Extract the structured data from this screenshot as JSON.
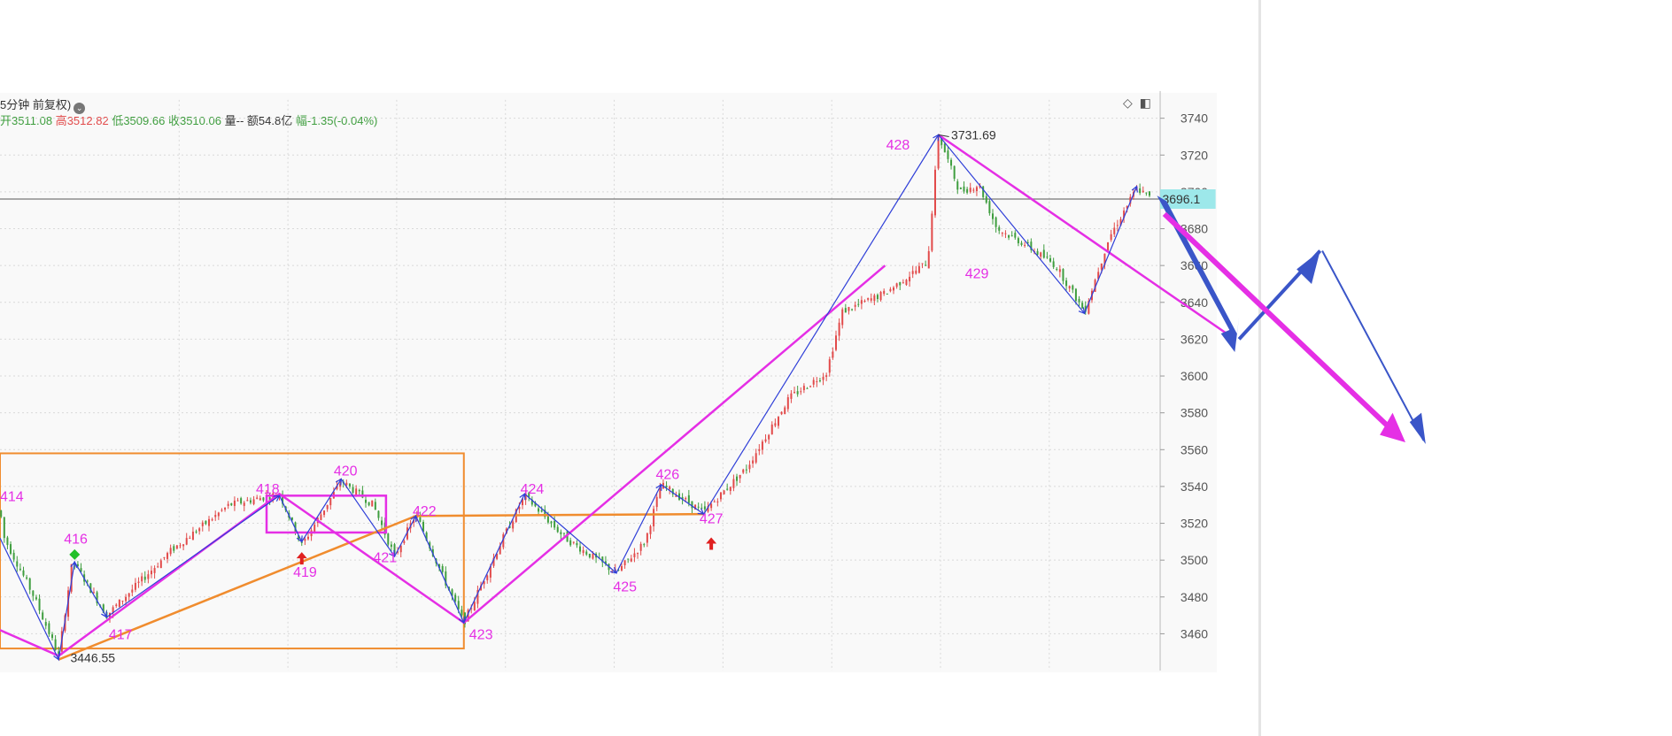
{
  "header": {
    "title": "5分钟 前复权)",
    "open_label": "开",
    "open": "3511.08",
    "high_label": "高",
    "high": "3512.82",
    "low_label": "低",
    "low": "3509.66",
    "close_label": "收",
    "close": "3510.06",
    "vol_label": "量",
    "vol": "--",
    "amount_label": "额",
    "amount": "54.8亿",
    "change_label": "幅",
    "change": "-1.35(-0.04%)"
  },
  "toolbar": {
    "diamond_icon": "◇",
    "panel_icon": "◧"
  },
  "colors": {
    "up": "#e24a4a",
    "down": "#3f9e3f",
    "pink": "#e52fe5",
    "orange": "#f08c2e",
    "blue": "#2f3fd8",
    "arrow_blue": "#3a55c8",
    "price_box": "#9de8ea"
  },
  "chart_data": {
    "type": "candlestick",
    "title": "",
    "ylim": [
      3440,
      3750
    ],
    "y_ticks": [
      3460,
      3480,
      3500,
      3520,
      3540,
      3560,
      3580,
      3600,
      3620,
      3640,
      3660,
      3680,
      3700,
      3720,
      3740
    ],
    "y_tick_labels": [
      "3460",
      "3480",
      "3500",
      "3520",
      "3540",
      "3560",
      "3580",
      "3600",
      "3620",
      "3640",
      "3660",
      "3680",
      "3700",
      "3720",
      "3740"
    ],
    "current_price": "3696.1",
    "max_label": "3731.69",
    "min_label": "3446.55",
    "wave_labels": [
      "414",
      "416",
      "417",
      "418",
      "419",
      "420",
      "421",
      "422",
      "423",
      "424",
      "425",
      "426",
      "427",
      "428",
      "429"
    ],
    "price_path": [
      {
        "t": 0,
        "y": 3527
      },
      {
        "t": 4,
        "y": 3512
      },
      {
        "t": 32,
        "y": 3480
      },
      {
        "t": 55,
        "y": 3448
      },
      {
        "t": 68,
        "y": 3500
      },
      {
        "t": 100,
        "y": 3470
      },
      {
        "t": 160,
        "y": 3505
      },
      {
        "t": 215,
        "y": 3530
      },
      {
        "t": 262,
        "y": 3536
      },
      {
        "t": 283,
        "y": 3508
      },
      {
        "t": 320,
        "y": 3543
      },
      {
        "t": 350,
        "y": 3530
      },
      {
        "t": 370,
        "y": 3502
      },
      {
        "t": 390,
        "y": 3525
      },
      {
        "t": 420,
        "y": 3485
      },
      {
        "t": 435,
        "y": 3466
      },
      {
        "t": 470,
        "y": 3510
      },
      {
        "t": 492,
        "y": 3535
      },
      {
        "t": 530,
        "y": 3512
      },
      {
        "t": 578,
        "y": 3493
      },
      {
        "t": 605,
        "y": 3510
      },
      {
        "t": 620,
        "y": 3541
      },
      {
        "t": 660,
        "y": 3526
      },
      {
        "t": 700,
        "y": 3550
      },
      {
        "t": 740,
        "y": 3588
      },
      {
        "t": 775,
        "y": 3602
      },
      {
        "t": 790,
        "y": 3635
      },
      {
        "t": 830,
        "y": 3645
      },
      {
        "t": 870,
        "y": 3662
      },
      {
        "t": 880,
        "y": 3731
      },
      {
        "t": 900,
        "y": 3700
      },
      {
        "t": 918,
        "y": 3704
      },
      {
        "t": 935,
        "y": 3680
      },
      {
        "t": 960,
        "y": 3672
      },
      {
        "t": 990,
        "y": 3660
      },
      {
        "t": 1017,
        "y": 3635
      },
      {
        "t": 1040,
        "y": 3675
      },
      {
        "t": 1066,
        "y": 3702
      },
      {
        "t": 1080,
        "y": 3696
      }
    ],
    "blue_zigzag": [
      {
        "t": 0,
        "y": 3512
      },
      {
        "t": 55,
        "y": 3446
      },
      {
        "t": 70,
        "y": 3499
      },
      {
        "t": 100,
        "y": 3469
      },
      {
        "t": 262,
        "y": 3535
      },
      {
        "t": 283,
        "y": 3510
      },
      {
        "t": 320,
        "y": 3544
      },
      {
        "t": 370,
        "y": 3502
      },
      {
        "t": 390,
        "y": 3524
      },
      {
        "t": 435,
        "y": 3466
      },
      {
        "t": 492,
        "y": 3536
      },
      {
        "t": 578,
        "y": 3493
      },
      {
        "t": 620,
        "y": 3541
      },
      {
        "t": 660,
        "y": 3525
      },
      {
        "t": 880,
        "y": 3731
      },
      {
        "t": 1017,
        "y": 3634
      },
      {
        "t": 1066,
        "y": 3703
      }
    ],
    "pink_lines": [
      [
        {
          "t": 0,
          "y": 3462
        },
        {
          "t": 55,
          "y": 3448
        },
        {
          "t": 262,
          "y": 3536
        },
        {
          "t": 435,
          "y": 3466
        },
        {
          "t": 830,
          "y": 3660
        }
      ],
      [
        {
          "t": 880,
          "y": 3731
        },
        {
          "t": 1158,
          "y": 3620
        }
      ]
    ],
    "orange_lines": [
      [
        {
          "t": 55,
          "y": 3446
        },
        {
          "t": 390,
          "y": 3524
        },
        {
          "t": 660,
          "y": 3525
        }
      ]
    ],
    "orange_box": {
      "t0": 0,
      "t1": 435,
      "y0": 3452,
      "y1": 3558
    },
    "pink_box": {
      "t0": 250,
      "t1": 362,
      "y0": 3515,
      "y1": 3535
    },
    "green_marker": {
      "t": 70,
      "y": 3503
    },
    "red_markers": [
      {
        "t": 283,
        "y": 3501
      },
      {
        "t": 667,
        "y": 3509
      }
    ]
  }
}
